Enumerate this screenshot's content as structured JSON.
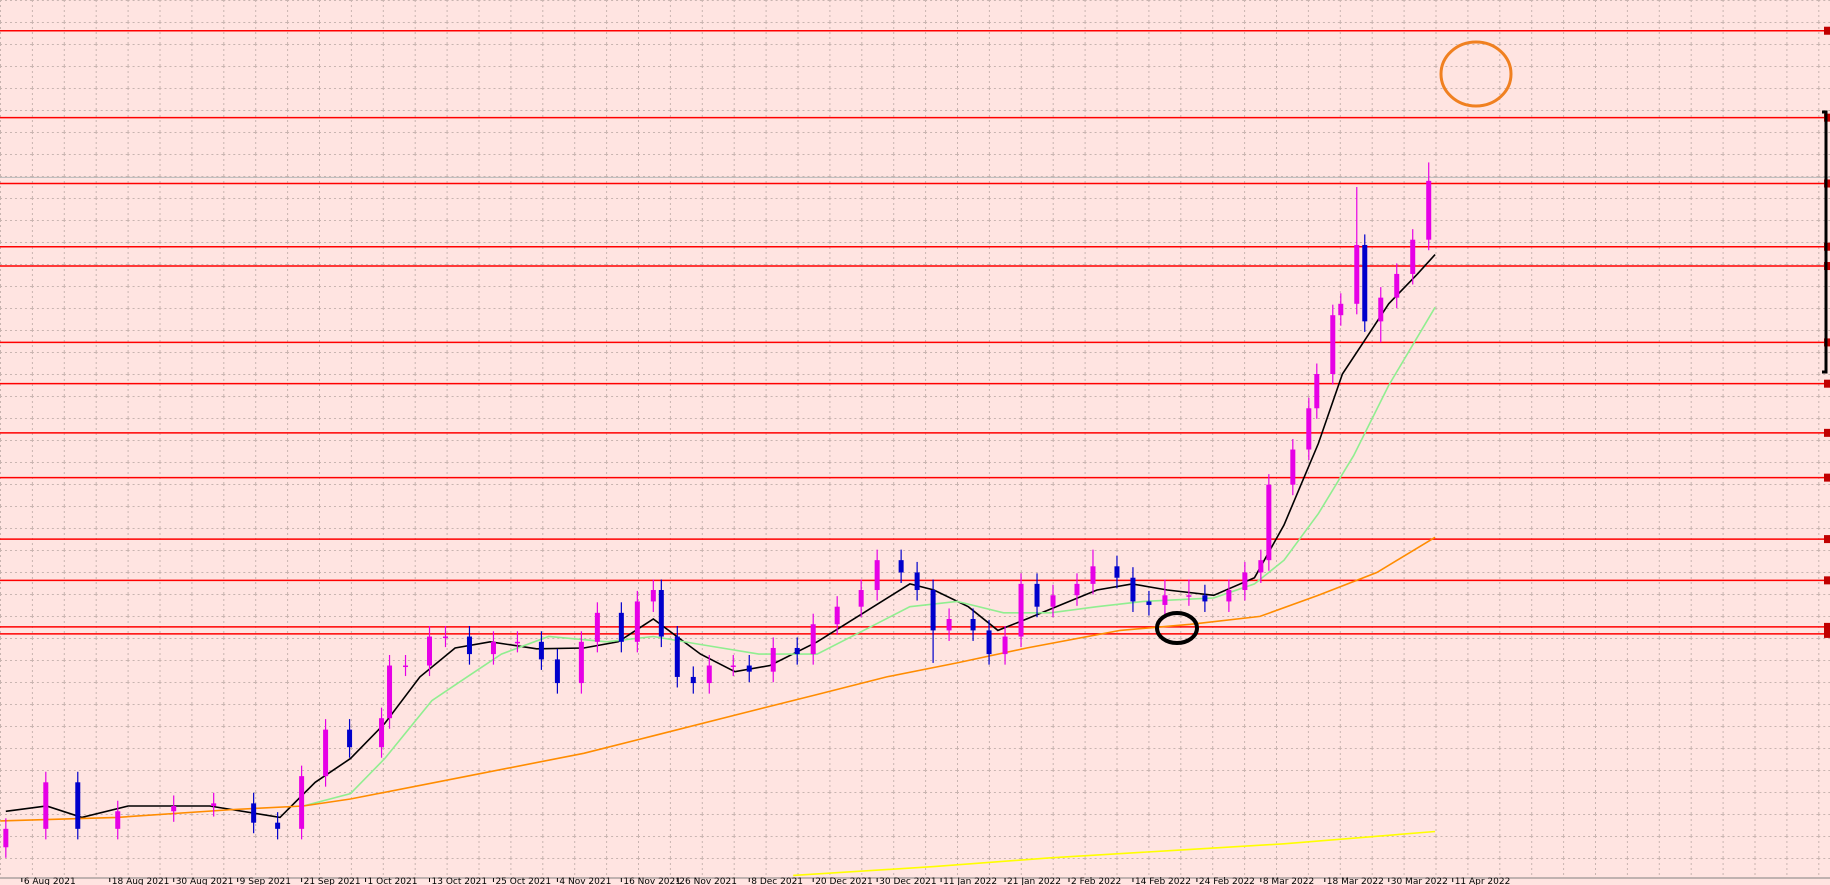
{
  "chart_data": {
    "type": "candlestick",
    "up_color": "#e600e6",
    "down_color": "#0000cc",
    "x": [
      0,
      5,
      9,
      14,
      21,
      26,
      31,
      34,
      37,
      40,
      43,
      47,
      48,
      50,
      53,
      55,
      58,
      61,
      64,
      67,
      69,
      72,
      74,
      77,
      79,
      81,
      82,
      84,
      86,
      88,
      91,
      93,
      96,
      99,
      101,
      104,
      107,
      109,
      112,
      114,
      116,
      118,
      121,
      123,
      125,
      127,
      129,
      131,
      134,
      136,
      139,
      141,
      143,
      145,
      148,
      150,
      153,
      155,
      157,
      158,
      161,
      163,
      164,
      166,
      167,
      169,
      170,
      172,
      174,
      176,
      178
    ],
    "open": [
      3.5,
      5.6,
      10.9,
      5.6,
      7.6,
      8.2,
      8.5,
      6.3,
      5.6,
      11.6,
      16.9,
      14.9,
      18.2,
      24.2,
      24.2,
      27.5,
      27.5,
      25.5,
      26.9,
      26.9,
      24.9,
      22.2,
      26.9,
      30.2,
      26.9,
      31.5,
      32.8,
      27.5,
      22.9,
      22.2,
      24.2,
      24.2,
      23.5,
      26.2,
      25.5,
      28.9,
      30.9,
      32.8,
      36.2,
      34.8,
      32.8,
      28.2,
      29.5,
      28.2,
      25.5,
      27.5,
      33.5,
      30.9,
      32.2,
      33.5,
      35.5,
      34.2,
      31.5,
      31.1,
      32.2,
      32.2,
      31.5,
      32.8,
      34.8,
      36.2,
      44.8,
      48.8,
      53.5,
      57.4,
      64.1,
      65.4,
      72.1,
      63.4,
      66.1,
      68.8,
      72.7
    ],
    "high": [
      6.8,
      12.1,
      12.1,
      8.8,
      9.4,
      9.7,
      9.7,
      7.5,
      12.8,
      18.1,
      18.1,
      19.4,
      25.4,
      25.4,
      28.7,
      28.7,
      28.7,
      28.1,
      28.1,
      28.1,
      26.1,
      28.1,
      31.4,
      31.4,
      32.7,
      34.0,
      34.0,
      28.7,
      24.1,
      25.4,
      25.4,
      25.4,
      27.4,
      27.4,
      30.1,
      32.1,
      34.0,
      37.4,
      37.4,
      36.0,
      34.0,
      30.7,
      30.7,
      29.4,
      28.7,
      34.7,
      34.7,
      33.4,
      34.7,
      37.4,
      36.7,
      35.4,
      32.7,
      34.0,
      34.0,
      33.4,
      34.0,
      36.0,
      37.4,
      46.0,
      50.0,
      54.7,
      58.6,
      65.3,
      66.6,
      78.7,
      73.3,
      67.3,
      70.0,
      73.9,
      81.5
    ],
    "low": [
      2.3,
      4.4,
      4.4,
      4.4,
      6.4,
      7.0,
      5.1,
      4.4,
      4.4,
      10.4,
      13.7,
      13.7,
      17.0,
      23.0,
      23.0,
      26.3,
      24.3,
      24.3,
      25.7,
      23.7,
      21.0,
      21.0,
      25.7,
      25.7,
      25.7,
      30.3,
      26.3,
      21.7,
      21.0,
      21.0,
      23.0,
      22.3,
      22.3,
      24.3,
      24.3,
      27.7,
      29.7,
      31.6,
      33.6,
      31.6,
      24.5,
      27.0,
      27.0,
      24.3,
      24.3,
      26.3,
      29.7,
      29.7,
      31.0,
      32.3,
      33.0,
      30.3,
      29.9,
      29.9,
      31.0,
      30.3,
      30.3,
      31.6,
      33.6,
      35.0,
      43.6,
      47.6,
      52.3,
      56.2,
      62.9,
      64.2,
      62.2,
      61.0,
      64.9,
      67.6,
      71.5
    ],
    "close": [
      5.6,
      10.9,
      5.6,
      7.6,
      8.2,
      8.5,
      6.3,
      5.6,
      11.6,
      16.9,
      14.9,
      18.2,
      24.2,
      24.2,
      27.5,
      27.5,
      25.5,
      26.9,
      26.9,
      24.9,
      22.2,
      26.9,
      30.2,
      26.9,
      31.5,
      32.8,
      27.5,
      22.9,
      22.2,
      24.2,
      24.2,
      23.5,
      26.2,
      25.5,
      28.9,
      30.9,
      32.8,
      36.2,
      34.8,
      32.8,
      28.2,
      29.5,
      28.2,
      25.5,
      27.5,
      33.5,
      30.9,
      32.2,
      33.5,
      35.5,
      34.2,
      31.5,
      31.1,
      32.2,
      32.2,
      31.5,
      32.8,
      34.8,
      36.2,
      44.8,
      48.8,
      53.5,
      57.4,
      64.1,
      65.4,
      72.1,
      63.4,
      66.1,
      68.8,
      72.7,
      79.4
    ],
    "lines": [
      {
        "color": "#000000",
        "x": [
          0,
          5.1,
          9.5,
          15.3,
          25.5,
          34.3,
          38.7,
          43.1,
          47.4,
          51.8,
          56.2,
          60.6,
          66.4,
          72.3,
          76.6,
          81.0,
          86.9,
          91.2,
          95.6,
          101.5,
          107.3,
          113.1,
          116.1,
          120.4,
          124.1,
          127.7,
          131.4,
          136.5,
          140.9,
          145.3,
          151.1,
          156.2,
          159.9,
          164.2,
          167.2,
          170.1,
          173.0,
          176.6,
          178.8
        ],
        "values": [
          7.6,
          8.2,
          6.9,
          8.2,
          8.2,
          6.9,
          10.9,
          13.6,
          17.6,
          22.9,
          26.2,
          26.9,
          26.1,
          26.2,
          26.9,
          29.5,
          25.5,
          23.5,
          24.2,
          26.9,
          30.2,
          33.5,
          32.8,
          30.9,
          28.2,
          29.5,
          30.9,
          32.8,
          33.5,
          32.8,
          32.2,
          34.2,
          40.2,
          49.5,
          57.4,
          61.4,
          65.4,
          68.8,
          71.0
        ]
      },
      {
        "color": "#90ee90",
        "x": [
          37.2,
          43.1,
          47.4,
          53.3,
          57.7,
          62.0,
          67.9,
          75.2,
          81.0,
          86.9,
          94.2,
          101.5,
          107.3,
          113.1,
          119.0,
          124.8,
          130.7,
          136.5,
          142.3,
          151.1,
          156.2,
          159.9,
          164.2,
          168.6,
          173.0,
          178.8
        ],
        "values": [
          8.2,
          9.6,
          13.6,
          20.2,
          22.9,
          25.5,
          27.5,
          26.9,
          27.5,
          26.6,
          25.5,
          25.5,
          28.2,
          30.9,
          31.5,
          30.2,
          30.2,
          30.9,
          31.5,
          31.9,
          33.5,
          36.2,
          41.5,
          48.1,
          56.1,
          65.0
        ]
      },
      {
        "color": "#ff8c00",
        "x": [
          -0.7,
          13.9,
          28.5,
          37.2,
          43.1,
          57.7,
          72.3,
          81.0,
          92.7,
          101.5,
          110.2,
          119.0,
          127.7,
          139.4,
          148.2,
          156.9,
          164.2,
          171.5,
          178.8
        ],
        "values": [
          6.5,
          6.9,
          7.8,
          8.2,
          9.0,
          11.6,
          14.2,
          16.2,
          18.9,
          20.9,
          22.9,
          24.5,
          26.2,
          28.2,
          28.9,
          29.8,
          32.2,
          34.8,
          38.8
        ]
      },
      {
        "color": "#ffff00",
        "x": [
          98.5,
          116.1,
          130.7,
          145.3,
          159.9,
          178.8
        ],
        "values": [
          0.3,
          1.3,
          2.3,
          3.1,
          3.9,
          5.3
        ]
      }
    ],
    "levels": {
      "color": "#ff0000",
      "values": [
        96.5,
        86.6,
        79.1,
        71.9,
        69.7,
        61.0,
        56.3,
        50.7,
        45.6,
        38.6,
        33.9,
        28.6,
        27.8
      ]
    },
    "price_line": {
      "color": "#b8b8b8",
      "value": 79.8
    },
    "xlim": [
      -0.73,
      228.2
    ],
    "ylim": [
      0,
      100
    ],
    "xticks": [
      {
        "value": 2,
        "label": "6 Aug 2021"
      },
      {
        "value": 13,
        "label": "18 Aug 2021"
      },
      {
        "value": 21,
        "label": "30 Aug 2021"
      },
      {
        "value": 29,
        "label": "9 Sep 2021"
      },
      {
        "value": 37,
        "label": "21 Sep 2021"
      },
      {
        "value": 45,
        "label": "1 Oct 2021"
      },
      {
        "value": 53,
        "label": "13 Oct 2021"
      },
      {
        "value": 61,
        "label": "25 Oct 2021"
      },
      {
        "value": 69,
        "label": "4 Nov 2021"
      },
      {
        "value": 77,
        "label": "16 Nov 2021"
      },
      {
        "value": 84,
        "label": "26 Nov 2021"
      },
      {
        "value": 93,
        "label": "8 Dec 2021"
      },
      {
        "value": 101,
        "label": "20 Dec 2021"
      },
      {
        "value": 109,
        "label": "30 Dec 2021"
      },
      {
        "value": 117,
        "label": "11 Jan 2022"
      },
      {
        "value": 125,
        "label": "21 Jan 2022"
      },
      {
        "value": 133,
        "label": "2 Feb 2022"
      },
      {
        "value": 141,
        "label": "14 Feb 2022"
      },
      {
        "value": 149,
        "label": "24 Feb 2022"
      },
      {
        "value": 157,
        "label": "8 Mar 2022"
      },
      {
        "value": 165,
        "label": "18 Mar 2022"
      },
      {
        "value": 173,
        "label": "30 Mar 2022"
      },
      {
        "value": 181,
        "label": "11 Apr 2022"
      }
    ],
    "grid": true
  }
}
